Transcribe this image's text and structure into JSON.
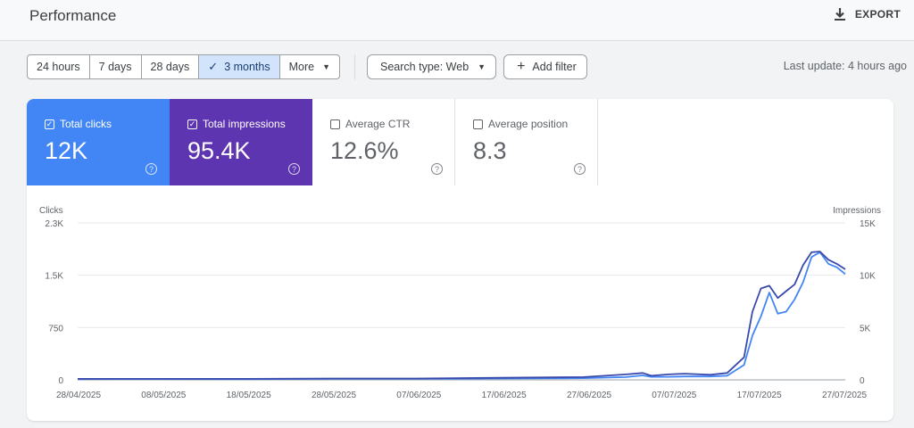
{
  "header": {
    "title": "Performance",
    "export_label": "EXPORT"
  },
  "toolbar": {
    "ranges": [
      {
        "label": "24 hours",
        "selected": false
      },
      {
        "label": "7 days",
        "selected": false
      },
      {
        "label": "28 days",
        "selected": false
      },
      {
        "label": "3 months",
        "selected": true
      },
      {
        "label": "More",
        "selected": false
      }
    ],
    "search_type_label": "Search type: Web",
    "add_filter_label": "Add filter",
    "last_update": "Last update: 4 hours ago"
  },
  "metrics": [
    {
      "label": "Total clicks",
      "value": "12K",
      "checked": true,
      "color": "#4285f4"
    },
    {
      "label": "Total impressions",
      "value": "95.4K",
      "checked": true,
      "color": "#5e35b1"
    },
    {
      "label": "Average CTR",
      "value": "12.6%",
      "checked": false,
      "color": "#ffffff"
    },
    {
      "label": "Average position",
      "value": "8.3",
      "checked": false,
      "color": "#ffffff"
    }
  ],
  "chart_data": {
    "type": "line",
    "left_axis_label": "Clicks",
    "right_axis_label": "Impressions",
    "left_ticks": [
      "2.3K",
      "1.5K",
      "750",
      "0"
    ],
    "left_ylim": [
      0,
      2300
    ],
    "right_ticks": [
      "15K",
      "10K",
      "5K",
      "0"
    ],
    "right_ylim": [
      0,
      15000
    ],
    "x_tick_labels": [
      "28/04/2025",
      "08/05/2025",
      "18/05/2025",
      "28/05/2025",
      "07/06/2025",
      "17/06/2025",
      "27/06/2025",
      "07/07/2025",
      "17/07/2025",
      "27/07/2025"
    ],
    "grid": true,
    "x_days": [
      0,
      10,
      20,
      30,
      40,
      50,
      60,
      65,
      67,
      68,
      70,
      72,
      75,
      77,
      79,
      80,
      81,
      82,
      83,
      84,
      85,
      86,
      87,
      88,
      89,
      90,
      91
    ],
    "series": [
      {
        "name": "Clicks",
        "axis": "left",
        "color": "#4285f4",
        "values": [
          10,
          12,
          10,
          15,
          15,
          20,
          25,
          40,
          65,
          45,
          45,
          50,
          50,
          60,
          220,
          650,
          930,
          1280,
          970,
          1000,
          1180,
          1430,
          1800,
          1870,
          1700,
          1650,
          1550
        ]
      },
      {
        "name": "Impressions",
        "axis": "left",
        "color": "#3949ab",
        "values": [
          15,
          15,
          15,
          20,
          20,
          30,
          40,
          80,
          100,
          60,
          80,
          90,
          75,
          100,
          330,
          1000,
          1340,
          1380,
          1200,
          1300,
          1400,
          1680,
          1870,
          1880,
          1760,
          1700,
          1620
        ]
      }
    ]
  }
}
